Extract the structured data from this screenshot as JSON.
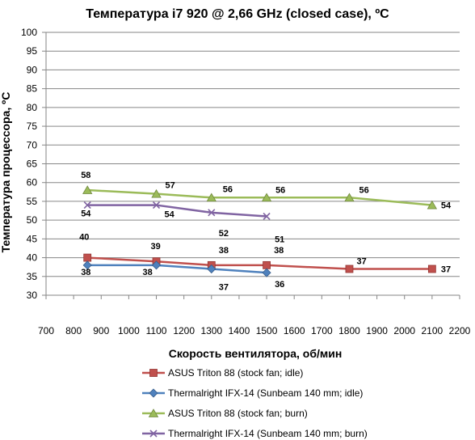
{
  "chart_data": {
    "type": "line",
    "title": "Температура i7 920 @ 2,66 GHz (closed case), ºC",
    "xlabel": "Скорость вентилятора, об/мин",
    "ylabel": "Температура процессора, ºC",
    "xlim": [
      700,
      2200
    ],
    "ylim": [
      30,
      100
    ],
    "xticks": [
      700,
      800,
      900,
      1000,
      1100,
      1200,
      1300,
      1400,
      1500,
      1600,
      1700,
      1800,
      1900,
      2000,
      2100,
      2200
    ],
    "yticks": [
      30,
      35,
      40,
      45,
      50,
      55,
      60,
      65,
      70,
      75,
      80,
      85,
      90,
      95,
      100
    ],
    "grid": "horizontal",
    "legend_position": "bottom",
    "series": [
      {
        "name": "ASUS Triton 88 (stock fan; idle)",
        "color": "#C0504D",
        "marker": "square",
        "x": [
          850,
          1100,
          1300,
          1500,
          1800,
          2100
        ],
        "y": [
          40,
          39,
          38,
          38,
          37,
          37
        ]
      },
      {
        "name": "Thermalright IFX-14 (Sunbeam 140 mm; idle)",
        "color": "#4F81BD",
        "marker": "diamond",
        "x": [
          850,
          1100,
          1300,
          1500
        ],
        "y": [
          38,
          38,
          37,
          36
        ]
      },
      {
        "name": "ASUS Triton 88 (stock fan; burn)",
        "color": "#9BBB59",
        "marker": "triangle",
        "x": [
          850,
          1100,
          1300,
          1500,
          1800,
          2100
        ],
        "y": [
          58,
          57,
          56,
          56,
          56,
          54
        ]
      },
      {
        "name": "Thermalright IFX-14 (Sunbeam 140 mm; burn)",
        "color": "#8064A2",
        "marker": "x",
        "x": [
          850,
          1100,
          1300,
          1500
        ],
        "y": [
          54,
          54,
          52,
          51
        ]
      }
    ]
  }
}
